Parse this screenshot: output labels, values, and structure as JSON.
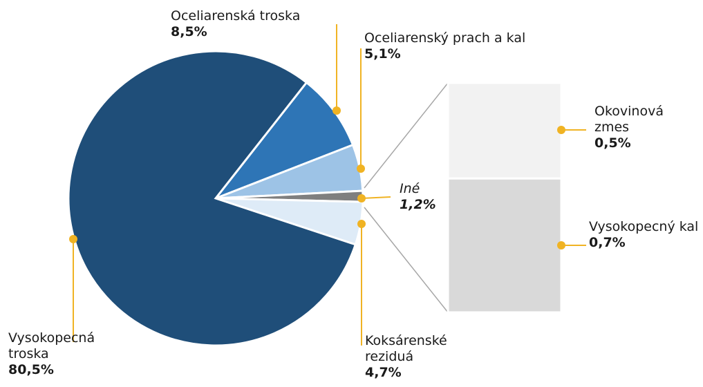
{
  "chart_data": {
    "type": "bar-of-pie",
    "categories": [
      "Oceliarenská troska",
      "Oceliarenský prach a kal",
      "Iné",
      "Koksárenské reziduá",
      "Vysokopecná troska"
    ],
    "values": [
      8.5,
      5.1,
      1.2,
      4.7,
      80.5
    ],
    "value_labels": [
      "8,5%",
      "5,1%",
      "1,2%",
      "4,7%",
      "80,5%"
    ],
    "colors": [
      "#2e75b6",
      "#9dc3e6",
      "#7f7f7f",
      "#deebf7",
      "#1f4e79"
    ],
    "sub": {
      "categories": [
        "Okovinová zmes",
        "Vysokopecný kal"
      ],
      "values": [
        0.5,
        0.7
      ],
      "value_labels": [
        "0,5%",
        "0,7%"
      ],
      "colors": [
        "#f2f2f2",
        "#d9d9d9"
      ]
    }
  }
}
